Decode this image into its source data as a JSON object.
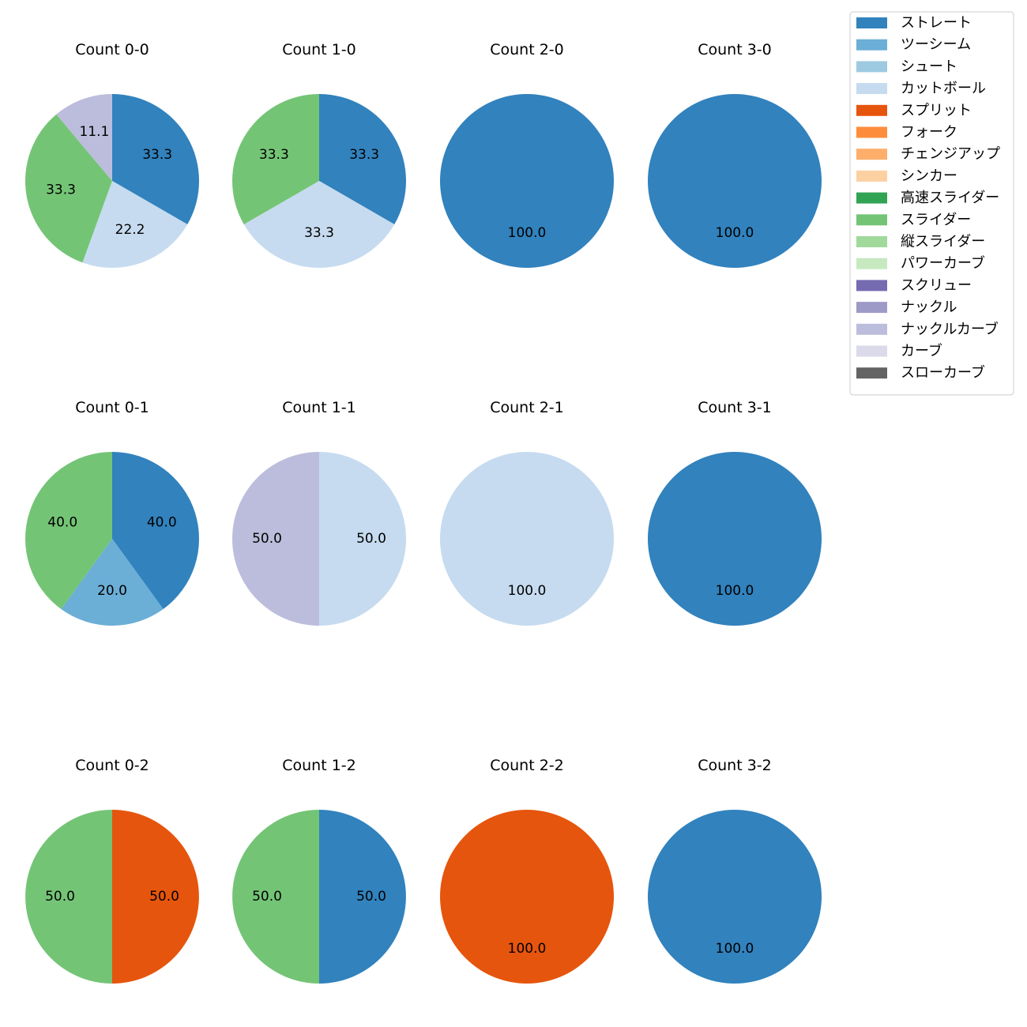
{
  "chart_data": {
    "type": "pie",
    "title": "",
    "legend": {
      "position": "top-right",
      "entries": [
        {
          "label": "ストレート",
          "color": "#3182bd"
        },
        {
          "label": "ツーシーム",
          "color": "#6baed6"
        },
        {
          "label": "シュート",
          "color": "#9ecae1"
        },
        {
          "label": "カットボール",
          "color": "#c6dbef"
        },
        {
          "label": "スプリット",
          "color": "#e6550d"
        },
        {
          "label": "フォーク",
          "color": "#fd8d3c"
        },
        {
          "label": "チェンジアップ",
          "color": "#fdae6b"
        },
        {
          "label": "シンカー",
          "color": "#fdd0a2"
        },
        {
          "label": "高速スライダー",
          "color": "#31a354"
        },
        {
          "label": "スライダー",
          "color": "#74c476"
        },
        {
          "label": "縦スライダー",
          "color": "#a1d99b"
        },
        {
          "label": "パワーカーブ",
          "color": "#c7e9c0"
        },
        {
          "label": "スクリュー",
          "color": "#756bb1"
        },
        {
          "label": "ナックル",
          "color": "#9e9ac8"
        },
        {
          "label": "ナックルカーブ",
          "color": "#bcbddc"
        },
        {
          "label": "カーブ",
          "color": "#dadaeb"
        },
        {
          "label": "スローカーブ",
          "color": "#636363"
        }
      ]
    },
    "pies": [
      {
        "title": "Count 0-0",
        "slices": [
          {
            "pitch": "ストレート",
            "value": 33.3,
            "label": "33.3"
          },
          {
            "pitch": "カットボール",
            "value": 22.2,
            "label": "22.2"
          },
          {
            "pitch": "スライダー",
            "value": 33.3,
            "label": "33.3"
          },
          {
            "pitch": "ナックルカーブ",
            "value": 11.1,
            "label": "11.1"
          }
        ]
      },
      {
        "title": "Count 1-0",
        "slices": [
          {
            "pitch": "ストレート",
            "value": 33.3,
            "label": "33.3"
          },
          {
            "pitch": "カットボール",
            "value": 33.3,
            "label": "33.3"
          },
          {
            "pitch": "スライダー",
            "value": 33.3,
            "label": "33.3"
          }
        ]
      },
      {
        "title": "Count 2-0",
        "slices": [
          {
            "pitch": "ストレート",
            "value": 100.0,
            "label": "100.0"
          }
        ]
      },
      {
        "title": "Count 3-0",
        "slices": [
          {
            "pitch": "ストレート",
            "value": 100.0,
            "label": "100.0"
          }
        ]
      },
      {
        "title": "Count 0-1",
        "slices": [
          {
            "pitch": "ストレート",
            "value": 40.0,
            "label": "40.0"
          },
          {
            "pitch": "ツーシーム",
            "value": 20.0,
            "label": "20.0"
          },
          {
            "pitch": "スライダー",
            "value": 40.0,
            "label": "40.0"
          }
        ]
      },
      {
        "title": "Count 1-1",
        "slices": [
          {
            "pitch": "カットボール",
            "value": 50.0,
            "label": "50.0"
          },
          {
            "pitch": "ナックルカーブ",
            "value": 50.0,
            "label": "50.0"
          }
        ]
      },
      {
        "title": "Count 2-1",
        "slices": [
          {
            "pitch": "カットボール",
            "value": 100.0,
            "label": "100.0"
          }
        ]
      },
      {
        "title": "Count 3-1",
        "slices": [
          {
            "pitch": "ストレート",
            "value": 100.0,
            "label": "100.0"
          }
        ]
      },
      {
        "title": "Count 0-2",
        "slices": [
          {
            "pitch": "スプリット",
            "value": 50.0,
            "label": "50.0"
          },
          {
            "pitch": "スライダー",
            "value": 50.0,
            "label": "50.0"
          }
        ]
      },
      {
        "title": "Count 1-2",
        "slices": [
          {
            "pitch": "ストレート",
            "value": 50.0,
            "label": "50.0"
          },
          {
            "pitch": "スライダー",
            "value": 50.0,
            "label": "50.0"
          }
        ]
      },
      {
        "title": "Count 2-2",
        "slices": [
          {
            "pitch": "スプリット",
            "value": 100.0,
            "label": "100.0"
          }
        ]
      },
      {
        "title": "Count 3-2",
        "slices": [
          {
            "pitch": "ストレート",
            "value": 100.0,
            "label": "100.0"
          }
        ]
      }
    ]
  }
}
